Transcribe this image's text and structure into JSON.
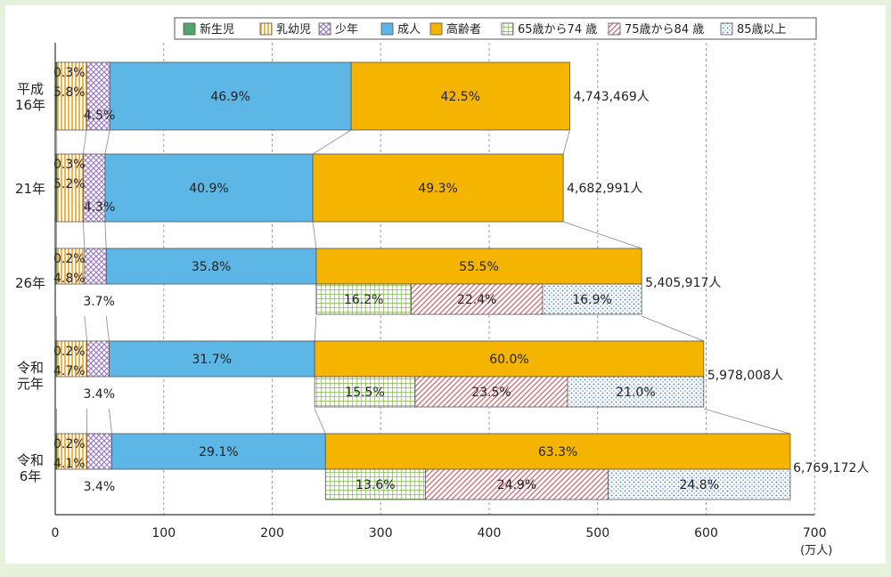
{
  "chart_data": {
    "type": "bar",
    "orientation": "horizontal",
    "stacked": true,
    "unit_label": "(万人)",
    "xlim": [
      0,
      700
    ],
    "xticks": [
      0,
      100,
      200,
      300,
      400,
      500,
      600,
      700
    ],
    "grid": true,
    "legend": {
      "placement": "top-right",
      "entries": [
        {
          "key": "newborn",
          "label": "新生児",
          "color": "#4fa56b",
          "pattern": "solid"
        },
        {
          "key": "infant",
          "label": "乳幼児",
          "color": "#f5c777",
          "pattern": "vlines"
        },
        {
          "key": "youth",
          "label": "少年",
          "color": "#cbb5dd",
          "pattern": "crosshatch"
        },
        {
          "key": "adult",
          "label": "成人",
          "color": "#5cb6e6",
          "pattern": "solid"
        },
        {
          "key": "elderly",
          "label": "高齢者",
          "color": "#f5b400",
          "pattern": "solid"
        },
        {
          "key": "age65_74",
          "label": "65歳から74 歳",
          "color": "#b6dc8e",
          "pattern": "grid"
        },
        {
          "key": "age75_84",
          "label": "75歳から84 歳",
          "color": "#e4848a",
          "pattern": "diag"
        },
        {
          "key": "age85plus",
          "label": "85歳以上",
          "color": "#7fa7d8",
          "pattern": "dots"
        }
      ]
    },
    "categories": [
      {
        "label": "平成\n16年",
        "total": 474.3469,
        "total_label": "4,743,469人",
        "values": {
          "newborn": 0.3,
          "infant": 5.8,
          "youth": 4.5,
          "adult": 46.9,
          "elderly": 42.5
        },
        "labels": {
          "newborn": "0.3%",
          "infant": "5.8%",
          "youth": "4.5%",
          "adult": "46.9%",
          "elderly": "42.5%"
        },
        "sub": null
      },
      {
        "label": "21年",
        "total": 468.2991,
        "total_label": "4,682,991人",
        "values": {
          "newborn": 0.3,
          "infant": 5.2,
          "youth": 4.3,
          "adult": 40.9,
          "elderly": 49.3
        },
        "labels": {
          "newborn": "0.3%",
          "infant": "5.2%",
          "youth": "4.3%",
          "adult": "40.9%",
          "elderly": "49.3%"
        },
        "sub": null
      },
      {
        "label": "26年",
        "total": 540.5917,
        "total_label": "5,405,917人",
        "values": {
          "newborn": 0.2,
          "infant": 4.8,
          "youth": 3.7,
          "adult": 35.8,
          "elderly": 55.5
        },
        "labels": {
          "newborn": "0.2%",
          "infant": "4.8%",
          "youth": "3.7%",
          "adult": "35.8%",
          "elderly": "55.5%"
        },
        "sub": {
          "values": {
            "age65_74": 16.2,
            "age75_84": 22.4,
            "age85plus": 16.9
          },
          "labels": {
            "age65_74": "16.2%",
            "age75_84": "22.4%",
            "age85plus": "16.9%"
          }
        }
      },
      {
        "label": "令和\n元年",
        "total": 597.8008,
        "total_label": "5,978,008人",
        "values": {
          "newborn": 0.2,
          "infant": 4.7,
          "youth": 3.4,
          "adult": 31.7,
          "elderly": 60.0
        },
        "labels": {
          "newborn": "0.2%",
          "infant": "4.7%",
          "youth": "3.4%",
          "adult": "31.7%",
          "elderly": "60.0%"
        },
        "sub": {
          "values": {
            "age65_74": 15.5,
            "age75_84": 23.5,
            "age85plus": 21.0
          },
          "labels": {
            "age65_74": "15.5%",
            "age75_84": "23.5%",
            "age85plus": "21.0%"
          }
        }
      },
      {
        "label": "令和\n6年",
        "total": 676.9172,
        "total_label": "6,769,172人",
        "values": {
          "newborn": 0.2,
          "infant": 4.1,
          "youth": 3.4,
          "adult": 29.1,
          "elderly": 63.3
        },
        "labels": {
          "newborn": "0.2%",
          "infant": "4.1%",
          "youth": "3.4%",
          "adult": "29.1%",
          "elderly": "63.3%"
        },
        "sub": {
          "values": {
            "age65_74": 13.6,
            "age75_84": 24.9,
            "age85plus": 24.8
          },
          "labels": {
            "age65_74": "13.6%",
            "age75_84": "24.9%",
            "age85plus": "24.8%"
          }
        }
      }
    ]
  }
}
